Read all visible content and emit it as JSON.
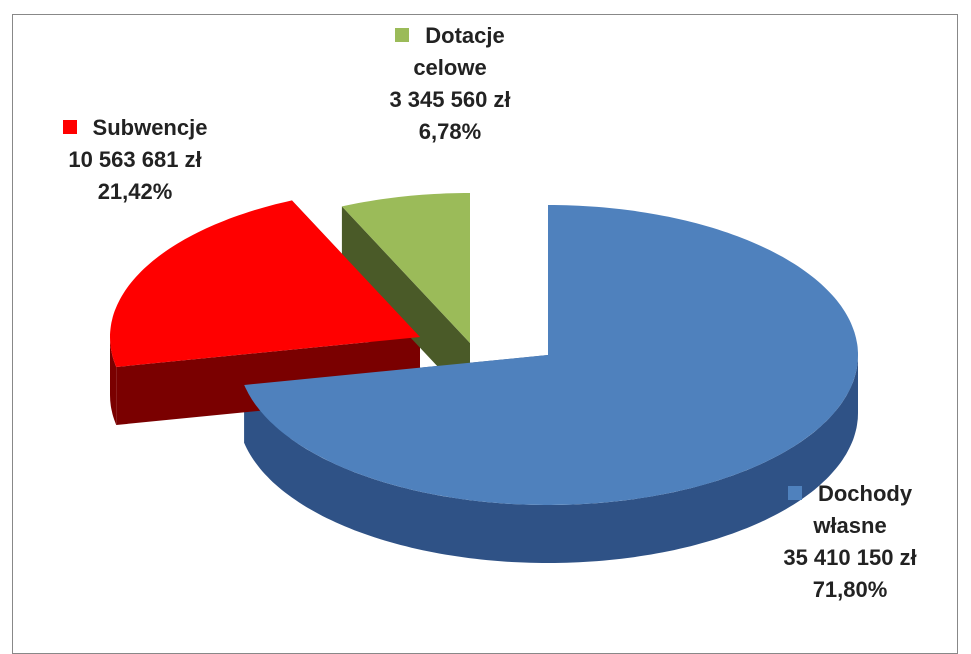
{
  "chart_data": {
    "type": "pie",
    "categories": [
      "Dochody własne",
      "Subwencje",
      "Dotacje celowe"
    ],
    "values": [
      71.8,
      21.42,
      6.78
    ],
    "value_labels": [
      "71,80%",
      "21,42%",
      "6,78%"
    ],
    "amounts": [
      35410150,
      10563681,
      3345560
    ],
    "amount_labels": [
      "35 410 150 zł",
      "10 563 681 zł",
      "3 345 560 zł"
    ],
    "colors": [
      "#4f81bd",
      "#ff0000",
      "#9bbb59"
    ]
  }
}
